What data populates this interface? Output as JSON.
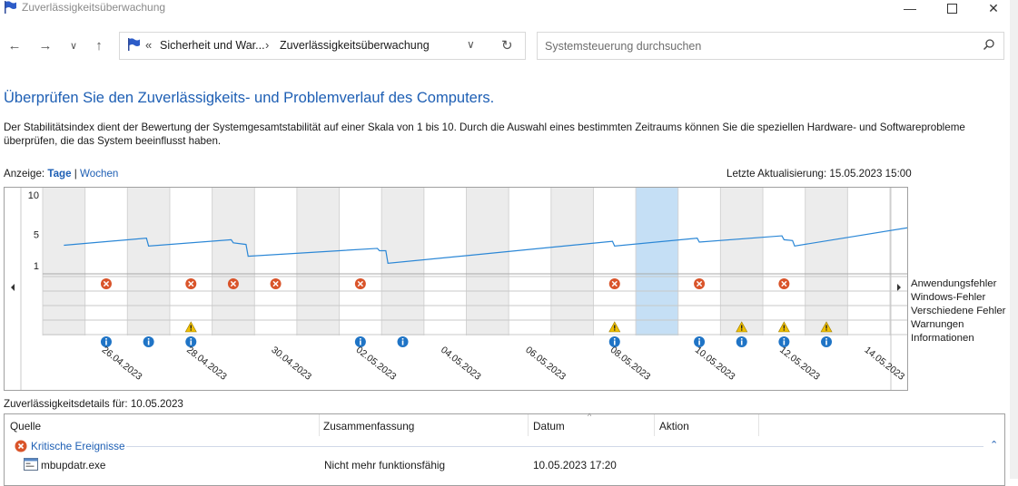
{
  "window": {
    "title": "Zuverlässigkeitsüberwachung"
  },
  "address": {
    "prefix": "«",
    "crumbs": [
      "Sicherheit und War...",
      "Zuverlässigkeitsüberwachung"
    ],
    "search_placeholder": "Systemsteuerung durchsuchen"
  },
  "page": {
    "heading": "Überprüfen Sie den Zuverlässigkeits- und Problemverlauf des Computers.",
    "description": "Der Stabilitätsindex dient der Bewertung der Systemgesamtstabilität auf einer Skala von 1 bis 10. Durch die Auswahl eines bestimmten Zeitraums können Sie die speziellen Hardware- und Softwareprobleme überprüfen, die das System beeinflusst haben.",
    "view_label": "Anzeige:",
    "view_days": "Tage",
    "view_sep": "|",
    "view_weeks": "Wochen",
    "last_update": "Letzte Aktualisierung: 15.05.2023 15:00"
  },
  "legend": [
    "Anwendungsfehler",
    "Windows-Fehler",
    "Verschiedene Fehler",
    "Warnungen",
    "Informationen"
  ],
  "colors": {
    "error": "#d9542a",
    "warning": "#f0c000",
    "info": "#1f74c6",
    "line": "#2b87d6",
    "selected": "#c5dff5",
    "shaded": "#ececec"
  },
  "chart_data": {
    "type": "line",
    "y_ticks": [
      "10",
      "5",
      "1"
    ],
    "ylim": [
      1,
      10
    ],
    "dates": [
      "25.04.2023",
      "26.04.2023",
      "27.04.2023",
      "28.04.2023",
      "29.04.2023",
      "30.04.2023",
      "01.05.2023",
      "02.05.2023",
      "03.05.2023",
      "04.05.2023",
      "05.05.2023",
      "06.05.2023",
      "07.05.2023",
      "08.05.2023",
      "09.05.2023",
      "10.05.2023",
      "11.05.2023",
      "12.05.2023",
      "13.05.2023",
      "14.05.2023",
      "15.05.2023"
    ],
    "x_tick_labels": [
      "26.04.2023",
      "28.04.2023",
      "30.04.2023",
      "02.05.2023",
      "04.05.2023",
      "06.05.2023",
      "08.05.2023",
      "10.05.2023",
      "12.05.2023",
      "14.05.2023"
    ],
    "shaded_columns": [
      0,
      2,
      4,
      6,
      8,
      10,
      12,
      14,
      16,
      18
    ],
    "selected_column": 14,
    "stability_index": [
      [
        0.0,
        3.6
      ],
      [
        1.95,
        4.5
      ],
      [
        2.0,
        3.5
      ],
      [
        3.95,
        4.3
      ],
      [
        4.0,
        3.9
      ],
      [
        4.3,
        3.7
      ],
      [
        4.35,
        2.2
      ],
      [
        7.4,
        3.2
      ],
      [
        7.45,
        2.9
      ],
      [
        7.6,
        2.9
      ],
      [
        7.65,
        1.3
      ],
      [
        12.95,
        4.1
      ],
      [
        13.0,
        3.5
      ],
      [
        14.95,
        4.5
      ],
      [
        15.0,
        4.0
      ],
      [
        16.95,
        4.8
      ],
      [
        17.0,
        4.3
      ],
      [
        17.2,
        4.2
      ],
      [
        17.25,
        3.5
      ],
      [
        20.0,
        5.9
      ]
    ],
    "events": {
      "Anwendungsfehler": [
        "26.04.2023",
        "28.04.2023",
        "29.04.2023",
        "30.04.2023",
        "02.05.2023",
        "08.05.2023",
        "10.05.2023",
        "12.05.2023"
      ],
      "Windows-Fehler": [],
      "Verschiedene Fehler": [],
      "Warnungen": [
        "28.04.2023",
        "08.05.2023",
        "11.05.2023",
        "12.05.2023",
        "13.05.2023"
      ],
      "Informationen": [
        "26.04.2023",
        "27.04.2023",
        "28.04.2023",
        "02.05.2023",
        "03.05.2023",
        "08.05.2023",
        "10.05.2023",
        "11.05.2023",
        "12.05.2023",
        "13.05.2023"
      ]
    }
  },
  "details": {
    "label": "Zuverlässigkeitsdetails für: 10.05.2023",
    "columns": [
      "Quelle",
      "Zusammenfassung",
      "Datum",
      "Aktion"
    ],
    "group": "Kritische Ereignisse",
    "rows": [
      {
        "source": "mbupdatr.exe",
        "summary": "Nicht mehr funktionsfähig",
        "date": "10.05.2023 17:20",
        "action": ""
      }
    ]
  }
}
